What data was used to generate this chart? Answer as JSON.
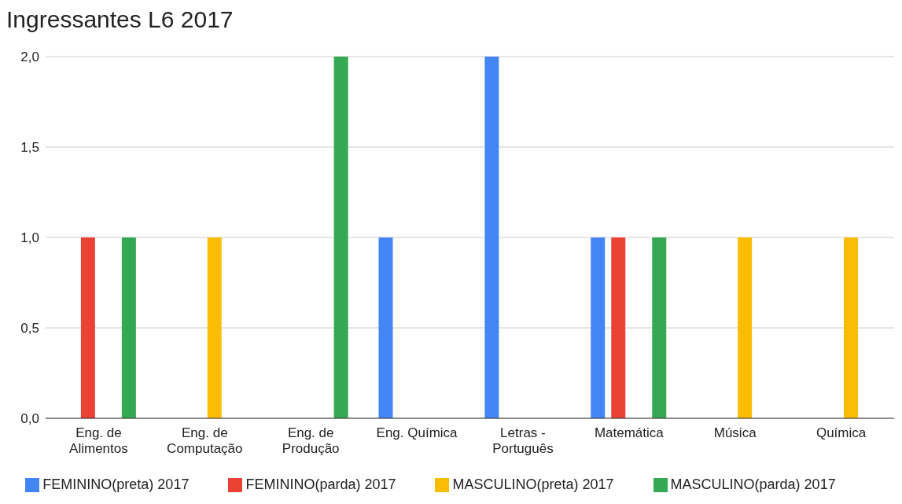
{
  "chart_data": {
    "type": "bar",
    "title": "Ingressantes L6 2017",
    "categories": [
      "Eng. de Alimentos",
      "Eng. de Computação",
      "Eng. de Produção",
      "Eng. Química",
      "Letras - Português",
      "Matemática",
      "Música",
      "Química"
    ],
    "series": [
      {
        "name": "FEMININO(preta) 2017",
        "color": "#4285f4",
        "values": [
          null,
          null,
          null,
          1,
          2,
          1,
          null,
          null
        ]
      },
      {
        "name": "FEMININO(parda) 2017",
        "color": "#ea4335",
        "values": [
          1,
          null,
          null,
          null,
          null,
          1,
          null,
          null
        ]
      },
      {
        "name": "MASCULINO(preta) 2017",
        "color": "#fbbc04",
        "values": [
          null,
          1,
          null,
          null,
          null,
          null,
          1,
          1
        ]
      },
      {
        "name": "MASCULINO(parda) 2017",
        "color": "#34a853",
        "values": [
          1,
          null,
          2,
          null,
          null,
          1,
          null,
          null
        ]
      }
    ],
    "ylim": [
      0,
      2
    ],
    "yticks": [
      {
        "value": 0,
        "label": "0,0"
      },
      {
        "value": 0.5,
        "label": "0,5"
      },
      {
        "value": 1,
        "label": "1,0"
      },
      {
        "value": 1.5,
        "label": "1,5"
      },
      {
        "value": 2,
        "label": "2,0"
      }
    ],
    "grid": "y",
    "legend": "bottom"
  }
}
